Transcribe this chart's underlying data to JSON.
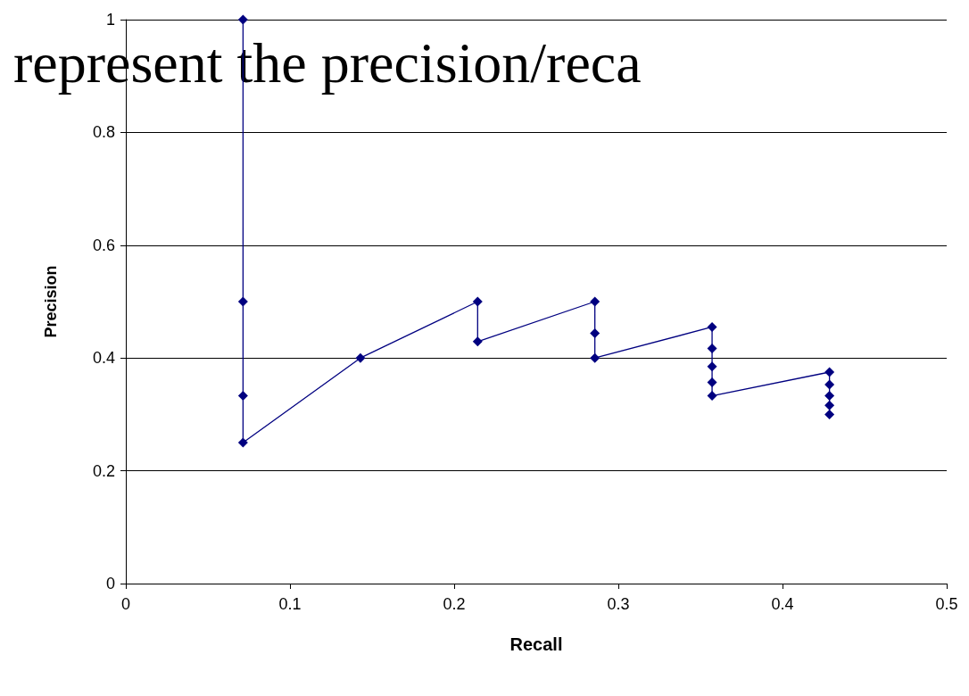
{
  "chart_data": {
    "type": "line",
    "xlabel": "Recall",
    "ylabel": "Precision",
    "annotations": [
      "represent the precision/reca"
    ],
    "series": [
      {
        "color": "#000080",
        "x": [
          0.0714,
          0.0714,
          0.0714,
          0.0714,
          0.1429,
          0.2143,
          0.2143,
          0.2857,
          0.2857,
          0.2857,
          0.3571,
          0.3571,
          0.3571,
          0.3571,
          0.3571,
          0.4286,
          0.4286,
          0.4286,
          0.4286,
          0.4286
        ],
        "values": [
          1,
          0.5,
          0.333,
          0.25,
          0.4,
          0.5,
          0.429,
          0.5,
          0.444,
          0.4,
          0.455,
          0.417,
          0.385,
          0.357,
          0.333,
          0.375,
          0.353,
          0.333,
          0.316,
          0.3
        ]
      }
    ],
    "xlim": [
      0,
      0.5
    ],
    "xticks": [
      0,
      0.1,
      0.2,
      0.3,
      0.4,
      0.5
    ],
    "ylim": [
      0,
      1
    ],
    "yticks": [
      0,
      0.2,
      0.4,
      0.6,
      0.8,
      1
    ],
    "grid": "y",
    "marker": "diamond",
    "line_style": "solid"
  }
}
